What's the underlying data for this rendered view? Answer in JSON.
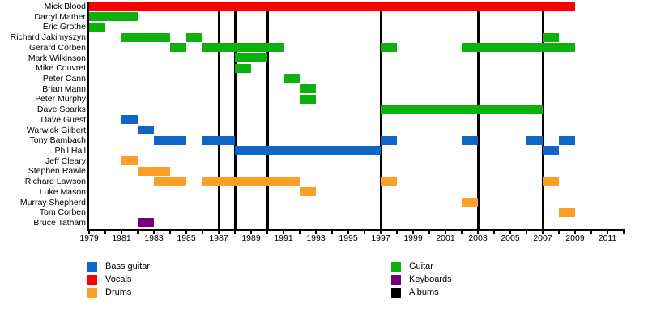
{
  "chart_data": {
    "type": "timeline",
    "title": "",
    "x_axis": {
      "start_year": 1979,
      "end_year": 2012,
      "tick_every_years": 1,
      "label_years": [
        1979,
        1981,
        1983,
        1985,
        1987,
        1989,
        1991,
        1993,
        1995,
        1997,
        1999,
        2001,
        2003,
        2005,
        2007,
        2009,
        2011
      ]
    },
    "album_release_years": [
      1987,
      1988,
      1990,
      1997,
      2003,
      2007
    ],
    "roles": {
      "Bass guitar": "#1065C8",
      "Vocals": "#FA0000",
      "Drums": "#FAA028",
      "Guitar": "#0DB00D",
      "Keyboards": "#750078",
      "Albums": "#000000"
    },
    "members": [
      {
        "name": "Mick Blood",
        "role": "Vocals",
        "periods": [
          [
            1979,
            2009
          ]
        ]
      },
      {
        "name": "Darryl Mather",
        "role": "Guitar",
        "periods": [
          [
            1979,
            1982
          ]
        ]
      },
      {
        "name": "Eric Grothe",
        "role": "Guitar",
        "periods": [
          [
            1979,
            1980
          ]
        ]
      },
      {
        "name": "Richard Jakimyszyn",
        "role": "Guitar",
        "periods": [
          [
            1981,
            1984
          ],
          [
            1985,
            1986
          ],
          [
            2007,
            2008
          ]
        ]
      },
      {
        "name": "Gerard Corben",
        "role": "Guitar",
        "periods": [
          [
            1984,
            1985
          ],
          [
            1986,
            1991
          ],
          [
            1997,
            1998
          ],
          [
            2002,
            2009
          ]
        ]
      },
      {
        "name": "Mark Wilkinson",
        "role": "Guitar",
        "periods": [
          [
            1988,
            1990
          ]
        ]
      },
      {
        "name": "Mike Couvret",
        "role": "Guitar",
        "periods": [
          [
            1988,
            1989
          ]
        ]
      },
      {
        "name": "Peter Cann",
        "role": "Guitar",
        "periods": [
          [
            1991,
            1992
          ]
        ]
      },
      {
        "name": "Brian Mann",
        "role": "Guitar",
        "periods": [
          [
            1992,
            1993
          ]
        ]
      },
      {
        "name": "Peter Murphy",
        "role": "Guitar",
        "periods": [
          [
            1992,
            1993
          ]
        ]
      },
      {
        "name": "Dave Sparks",
        "role": "Guitar",
        "periods": [
          [
            1997,
            2007
          ]
        ]
      },
      {
        "name": "Dave Guest",
        "role": "Bass guitar",
        "periods": [
          [
            1981,
            1982
          ]
        ]
      },
      {
        "name": "Warwick Gilbert",
        "role": "Bass guitar",
        "periods": [
          [
            1982,
            1983
          ]
        ]
      },
      {
        "name": "Tony Bambach",
        "role": "Bass guitar",
        "periods": [
          [
            1983,
            1985
          ],
          [
            1986,
            1988
          ],
          [
            1997,
            1998
          ],
          [
            2002,
            2003
          ],
          [
            2006,
            2007
          ],
          [
            2008,
            2009
          ]
        ]
      },
      {
        "name": "Phil Hall",
        "role": "Bass guitar",
        "periods": [
          [
            1988,
            1997
          ],
          [
            2007,
            2008
          ]
        ]
      },
      {
        "name": "Jeff Cleary",
        "role": "Drums",
        "periods": [
          [
            1981,
            1982
          ]
        ]
      },
      {
        "name": "Stephen Rawle",
        "role": "Drums",
        "periods": [
          [
            1982,
            1984
          ]
        ]
      },
      {
        "name": "Richard Lawson",
        "role": "Drums",
        "periods": [
          [
            1983,
            1985
          ],
          [
            1986,
            1992
          ],
          [
            1997,
            1998
          ],
          [
            2007,
            2008
          ]
        ]
      },
      {
        "name": "Luke Mason",
        "role": "Drums",
        "periods": [
          [
            1992,
            1993
          ]
        ]
      },
      {
        "name": "Murray Shepherd",
        "role": "Drums",
        "periods": [
          [
            2002,
            2003
          ]
        ]
      },
      {
        "name": "Tom Corben",
        "role": "Drums",
        "periods": [
          [
            2008,
            2009
          ]
        ]
      },
      {
        "name": "Bruce Tatham",
        "role": "Keyboards",
        "periods": [
          [
            1982,
            1983
          ]
        ]
      }
    ],
    "legend": {
      "position": "bottom",
      "columns": [
        [
          "Bass guitar",
          "Vocals",
          "Drums"
        ],
        [
          "Guitar",
          "Keyboards",
          "Albums"
        ]
      ]
    }
  }
}
